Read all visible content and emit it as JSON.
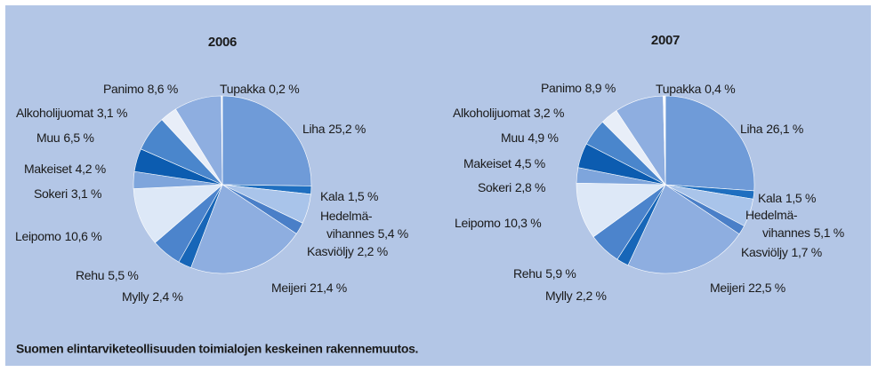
{
  "chart_data": [
    {
      "type": "pie",
      "title": "2006",
      "categories": [
        "Liha",
        "Kala",
        "Hedelmä-vihannes",
        "Kasviöljy",
        "Meijeri",
        "Mylly",
        "Rehu",
        "Leipomo",
        "Sokeri",
        "Makeiset",
        "Muu",
        "Alkoholijuomat",
        "Panimo",
        "Tupakka"
      ],
      "values": [
        25.2,
        1.5,
        5.4,
        2.2,
        21.4,
        2.4,
        5.5,
        10.6,
        3.1,
        4.2,
        6.5,
        3.1,
        8.6,
        0.2
      ],
      "value_labels": [
        "25,2 %",
        "1,5 %",
        "5,4 %",
        "2,2 %",
        "21,4 %",
        "2,4 %",
        "5,5 %",
        "10,6 %",
        "3,1 %",
        "4,2 %",
        "6,5 %",
        "3,1 %",
        "8,6 %",
        "0,2 %"
      ],
      "colors": [
        "#6f9bd8",
        "#1f6fc0",
        "#a9c4ea",
        "#4a7fc8",
        "#8eaee0",
        "#1766b8",
        "#4c84cc",
        "#dde8f7",
        "#7ea5dc",
        "#0c5cb0",
        "#4a86cc",
        "#e8eef8",
        "#8eaee0",
        "#ffffff"
      ]
    },
    {
      "type": "pie",
      "title": "2007",
      "categories": [
        "Liha",
        "Kala",
        "Hedelmä-vihannes",
        "Kasviöljy",
        "Meijeri",
        "Mylly",
        "Rehu",
        "Leipomo",
        "Sokeri",
        "Makeiset",
        "Muu",
        "Alkoholijuomat",
        "Panimo",
        "Tupakka"
      ],
      "values": [
        26.1,
        1.5,
        5.1,
        1.7,
        22.5,
        2.2,
        5.9,
        10.3,
        2.8,
        4.5,
        4.9,
        3.2,
        8.9,
        0.4
      ],
      "value_labels": [
        "26,1 %",
        "1,5 %",
        "5,1 %",
        "1,7 %",
        "22,5 %",
        "2,2 %",
        "5,9 %",
        "10,3 %",
        "2,8 %",
        "4,5 %",
        "4,9 %",
        "3,2 %",
        "8,9 %",
        "0,4 %"
      ],
      "colors": [
        "#6f9bd8",
        "#1f6fc0",
        "#a9c4ea",
        "#4a7fc8",
        "#8eaee0",
        "#1766b8",
        "#4c84cc",
        "#dde8f7",
        "#7ea5dc",
        "#0c5cb0",
        "#4a86cc",
        "#e8eef8",
        "#8eaee0",
        "#ffffff"
      ]
    }
  ],
  "caption": "Suomen elintarviketeollisuuden toimialojen keskeinen rakennemuutos."
}
